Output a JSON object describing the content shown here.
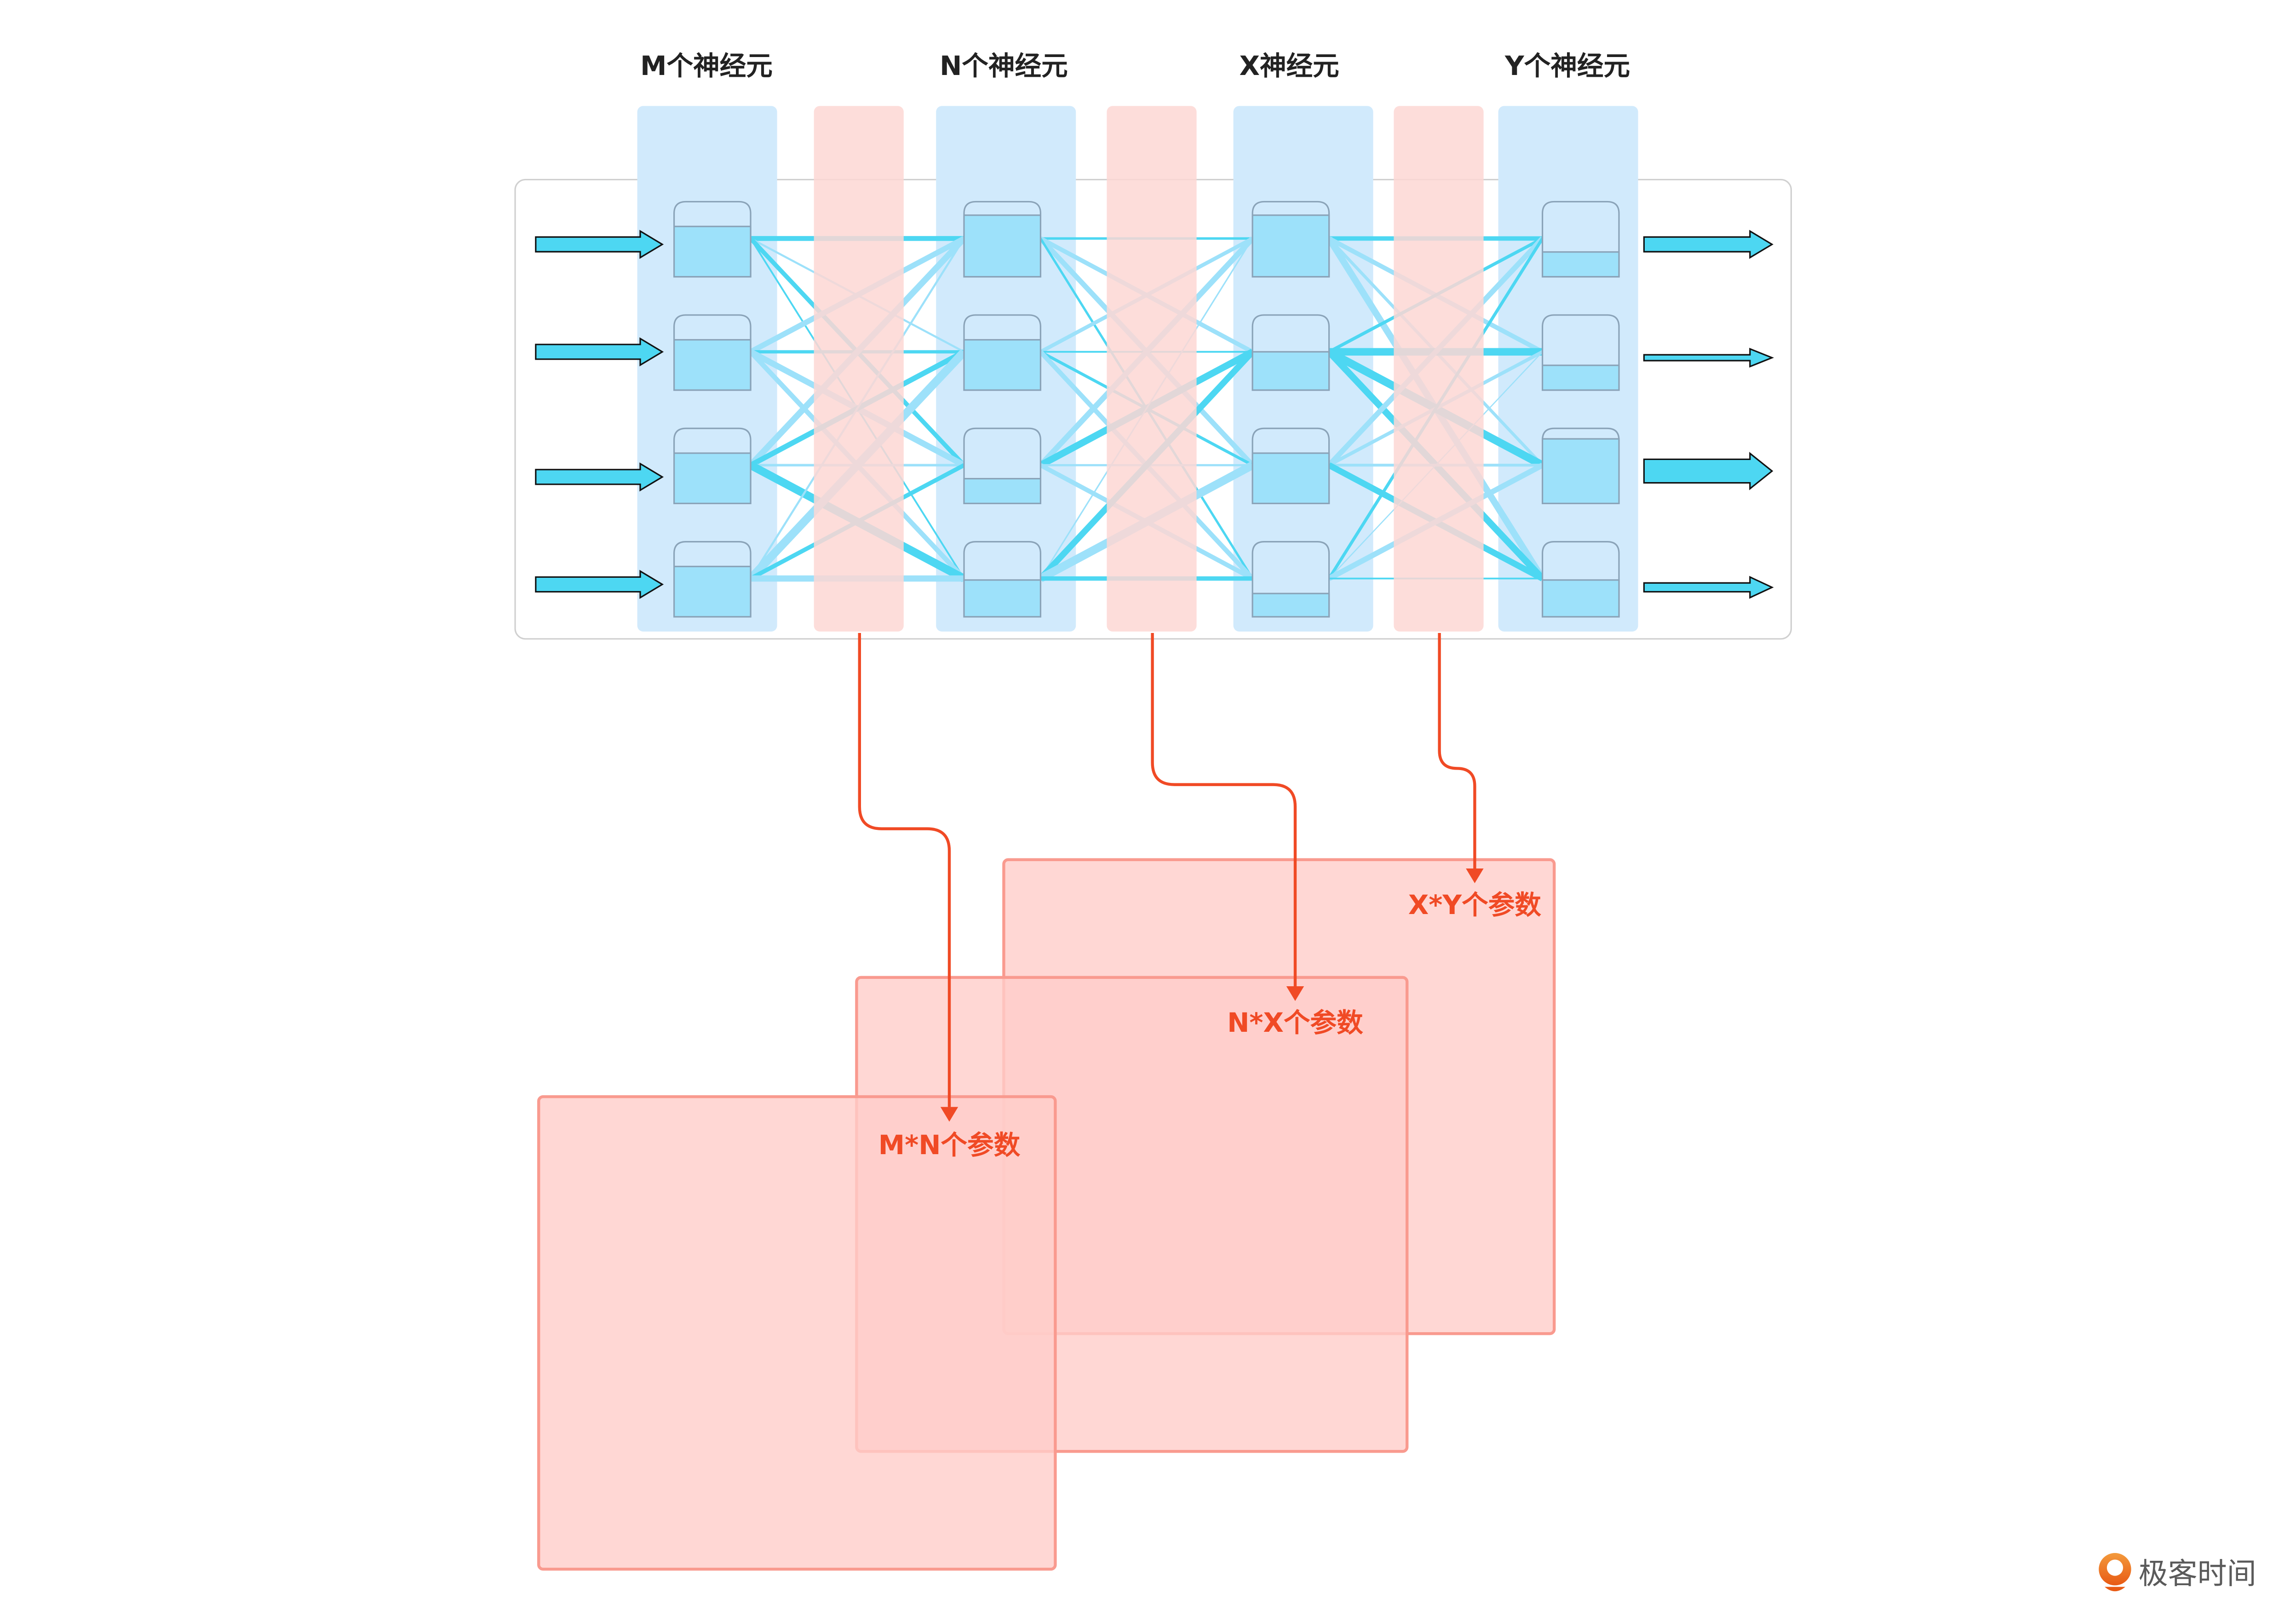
{
  "layers": [
    {
      "label": "M个神经元",
      "fill_levels": [
        0.67,
        0.67,
        0.67,
        0.67
      ]
    },
    {
      "label": "N个神经元",
      "fill_levels": [
        0.82,
        0.67,
        0.33,
        0.49
      ]
    },
    {
      "label": "X神经元",
      "fill_levels": [
        0.82,
        0.51,
        0.67,
        0.31
      ]
    },
    {
      "label": "Y个神经元",
      "fill_levels": [
        0.33,
        0.33,
        0.86,
        0.49
      ]
    }
  ],
  "parameter_matrices": [
    {
      "label": "M*N个参数"
    },
    {
      "label": "N*X个参数"
    },
    {
      "label": "X*Y个参数"
    }
  ],
  "logo": {
    "text": "极客时间",
    "icon": "geektime-logo-icon"
  },
  "colors": {
    "layer_column": "#d1eafc",
    "weight_column": "#fdd7d4",
    "neuron_fill": "#9de1fa",
    "connection_strong": "#4dd7f2",
    "connection_light": "#9de1fa",
    "param_text": "#f04a25",
    "matrix_fill": "#ffcdc9",
    "matrix_stroke": "#f99a8f"
  }
}
